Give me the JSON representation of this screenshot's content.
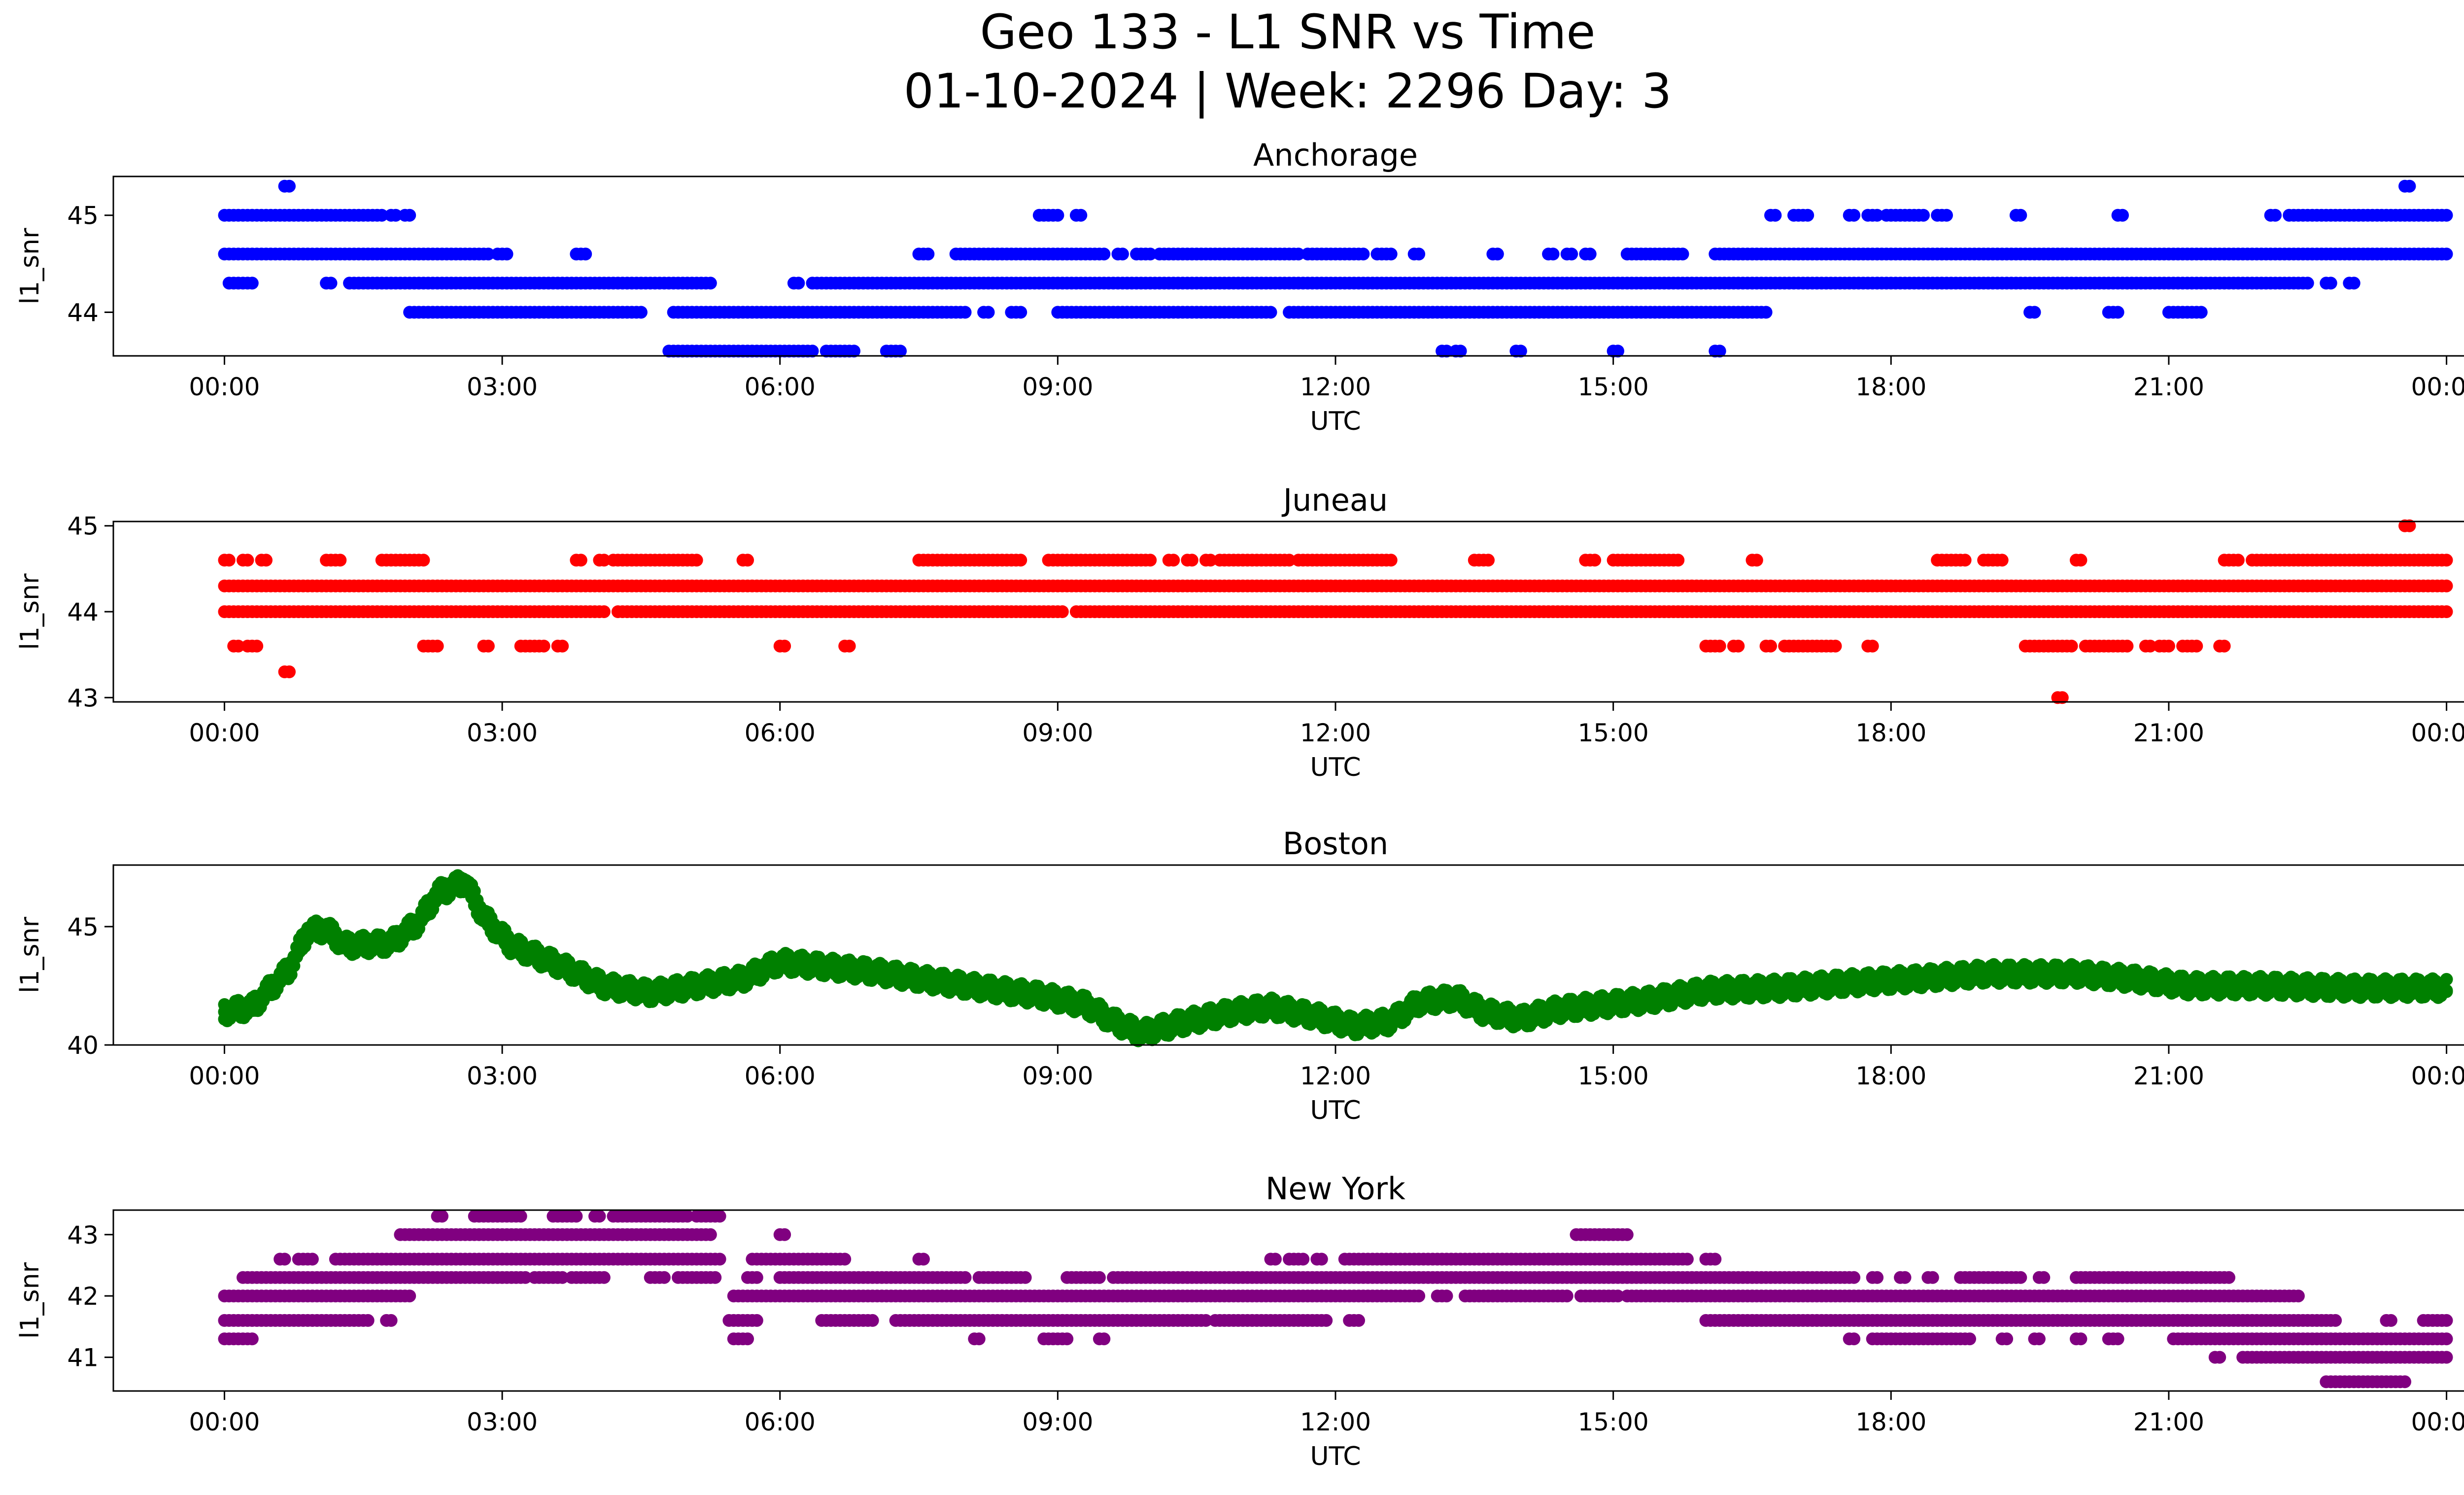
{
  "figure": {
    "title_line1": "Geo 133 - L1 SNR vs Time",
    "title_line2": "01-10-2024 | Week: 2296 Day: 3"
  },
  "chart_data": [
    {
      "type": "scatter",
      "title": "Anchorage",
      "xlabel": "UTC",
      "ylabel": "l1_snr",
      "color": "#0000ff",
      "xticks": [
        "00:00",
        "03:00",
        "06:00",
        "09:00",
        "12:00",
        "15:00",
        "18:00",
        "21:00",
        "00:00"
      ],
      "xlim": [
        -1.2,
        25.2
      ],
      "yticks": [
        44,
        45
      ],
      "ylim": [
        43.55,
        45.4
      ],
      "segments": [
        {
          "y": 45.0,
          "ranges": [
            [
              0,
              1.7
            ],
            [
              1.8,
              1.85
            ],
            [
              1.95,
              2.0
            ],
            [
              8.8,
              9.0
            ],
            [
              9.2,
              9.25
            ],
            [
              16.7,
              16.75
            ],
            [
              16.95,
              17.0
            ],
            [
              17.05,
              17.1
            ],
            [
              17.55,
              17.6
            ],
            [
              17.75,
              17.85
            ],
            [
              17.95,
              18.35
            ],
            [
              18.5,
              18.6
            ],
            [
              19.35,
              19.4
            ],
            [
              20.45,
              20.5
            ],
            [
              22.1,
              22.15
            ],
            [
              22.3,
              24.0
            ]
          ]
        },
        {
          "y": 44.6,
          "ranges": [
            [
              0,
              2.85
            ],
            [
              2.95,
              3.05
            ],
            [
              3.8,
              3.9
            ],
            [
              7.5,
              7.6
            ],
            [
              7.9,
              9.5
            ],
            [
              9.65,
              9.7
            ],
            [
              9.85,
              10.0
            ],
            [
              10.1,
              11.6
            ],
            [
              11.7,
              12.3
            ],
            [
              12.45,
              12.6
            ],
            [
              12.85,
              12.9
            ],
            [
              13.7,
              13.75
            ],
            [
              14.3,
              14.35
            ],
            [
              14.5,
              14.55
            ],
            [
              14.7,
              14.75
            ],
            [
              15.15,
              15.75
            ],
            [
              16.1,
              24.0
            ]
          ]
        },
        {
          "y": 44.3,
          "ranges": [
            [
              0.05,
              0.3
            ],
            [
              1.1,
              1.15
            ],
            [
              1.35,
              5.25
            ],
            [
              6.15,
              6.2
            ],
            [
              6.35,
              22.5
            ],
            [
              22.7,
              22.75
            ],
            [
              22.95,
              23.0
            ]
          ]
        },
        {
          "y": 44.0,
          "ranges": [
            [
              2.0,
              4.5
            ],
            [
              4.85,
              8.0
            ],
            [
              8.2,
              8.25
            ],
            [
              8.5,
              8.6
            ],
            [
              9.0,
              11.3
            ],
            [
              11.5,
              16.65
            ],
            [
              19.5,
              19.55
            ],
            [
              20.35,
              20.45
            ],
            [
              21.0,
              21.35
            ]
          ]
        },
        {
          "y": 43.6,
          "ranges": [
            [
              4.8,
              6.35
            ],
            [
              6.5,
              6.8
            ],
            [
              7.15,
              7.3
            ],
            [
              13.15,
              13.2
            ],
            [
              13.3,
              13.35
            ],
            [
              13.95,
              14.0
            ],
            [
              15.0,
              15.05
            ],
            [
              16.1,
              16.15
            ]
          ]
        },
        {
          "y": 45.3,
          "ranges": [
            [
              0.65,
              0.7
            ],
            [
              23.55,
              23.6
            ]
          ]
        }
      ]
    },
    {
      "type": "scatter",
      "title": "Juneau",
      "xlabel": "UTC",
      "ylabel": "l1_snr",
      "color": "#ff0000",
      "xticks": [
        "00:00",
        "03:00",
        "06:00",
        "09:00",
        "12:00",
        "15:00",
        "18:00",
        "21:00",
        "00:00"
      ],
      "xlim": [
        -1.2,
        25.2
      ],
      "yticks": [
        43,
        44,
        45
      ],
      "ylim": [
        42.95,
        45.05
      ],
      "segments": [
        {
          "y": 45.0,
          "ranges": [
            [
              23.55,
              23.6
            ]
          ]
        },
        {
          "y": 44.6,
          "ranges": [
            [
              0,
              0.05
            ],
            [
              0.2,
              0.25
            ],
            [
              0.4,
              0.45
            ],
            [
              1.1,
              1.25
            ],
            [
              1.7,
              2.15
            ],
            [
              3.8,
              3.85
            ],
            [
              4.05,
              4.1
            ],
            [
              4.2,
              5.1
            ],
            [
              5.6,
              5.65
            ],
            [
              7.5,
              8.6
            ],
            [
              8.9,
              10.0
            ],
            [
              10.2,
              10.25
            ],
            [
              10.4,
              10.45
            ],
            [
              10.6,
              10.65
            ],
            [
              10.75,
              11.5
            ],
            [
              11.6,
              12.6
            ],
            [
              13.5,
              13.65
            ],
            [
              14.7,
              14.8
            ],
            [
              15.0,
              15.7
            ],
            [
              16.5,
              16.55
            ],
            [
              18.5,
              18.8
            ],
            [
              19.0,
              19.2
            ],
            [
              20.0,
              20.05
            ],
            [
              21.6,
              21.75
            ],
            [
              21.9,
              24.0
            ]
          ]
        },
        {
          "y": 44.3,
          "ranges": [
            [
              0,
              24.0
            ]
          ]
        },
        {
          "y": 44.0,
          "ranges": [
            [
              0,
              4.1
            ],
            [
              4.25,
              9.05
            ],
            [
              9.2,
              24.0
            ]
          ]
        },
        {
          "y": 43.6,
          "ranges": [
            [
              0.1,
              0.15
            ],
            [
              0.25,
              0.35
            ],
            [
              2.15,
              2.3
            ],
            [
              2.8,
              2.85
            ],
            [
              3.2,
              3.45
            ],
            [
              3.6,
              3.65
            ],
            [
              6.0,
              6.05
            ],
            [
              6.7,
              6.75
            ],
            [
              16.0,
              16.15
            ],
            [
              16.3,
              16.35
            ],
            [
              16.65,
              16.7
            ],
            [
              16.85,
              17.4
            ],
            [
              17.75,
              17.8
            ],
            [
              20.9,
              21.0
            ],
            [
              19.45,
              19.95
            ],
            [
              20.1,
              20.55
            ],
            [
              20.75,
              20.8
            ],
            [
              21.15,
              21.3
            ],
            [
              21.55,
              21.6
            ]
          ]
        },
        {
          "y": 43.3,
          "ranges": [
            [
              0.65,
              0.7
            ]
          ]
        },
        {
          "y": 43.0,
          "ranges": [
            [
              19.8,
              19.85
            ]
          ]
        }
      ]
    },
    {
      "type": "scatter",
      "title": "Boston",
      "xlabel": "UTC",
      "ylabel": "l1_snr",
      "color": "#008000",
      "xticks": [
        "00:00",
        "03:00",
        "06:00",
        "09:00",
        "12:00",
        "15:00",
        "18:00",
        "21:00",
        "00:00"
      ],
      "xlim": [
        -1.2,
        25.2
      ],
      "yticks": [
        40,
        45
      ],
      "ylim": [
        40.0,
        47.6
      ],
      "curve": [
        [
          0,
          41.4
        ],
        [
          0.3,
          41.6
        ],
        [
          0.7,
          43.2
        ],
        [
          0.9,
          44.8
        ],
        [
          1.1,
          44.9
        ],
        [
          1.3,
          44.2
        ],
        [
          1.8,
          44.3
        ],
        [
          2.1,
          45.2
        ],
        [
          2.3,
          46.4
        ],
        [
          2.6,
          46.9
        ],
        [
          2.8,
          45.4
        ],
        [
          3.1,
          44.2
        ],
        [
          3.6,
          43.4
        ],
        [
          4.1,
          42.5
        ],
        [
          4.6,
          42.2
        ],
        [
          5.1,
          42.5
        ],
        [
          5.6,
          42.8
        ],
        [
          6.0,
          43.5
        ],
        [
          6.5,
          43.3
        ],
        [
          7.0,
          43.1
        ],
        [
          7.5,
          42.8
        ],
        [
          8.2,
          42.4
        ],
        [
          8.8,
          42.1
        ],
        [
          9.3,
          41.7
        ],
        [
          9.6,
          41.0
        ],
        [
          9.9,
          40.5
        ],
        [
          10.3,
          40.9
        ],
        [
          10.9,
          41.4
        ],
        [
          11.3,
          41.6
        ],
        [
          11.8,
          41.2
        ],
        [
          12.2,
          40.8
        ],
        [
          12.6,
          41.0
        ],
        [
          12.9,
          41.8
        ],
        [
          13.3,
          42.0
        ],
        [
          13.6,
          41.4
        ],
        [
          14.0,
          41.1
        ],
        [
          14.4,
          41.5
        ],
        [
          14.9,
          41.7
        ],
        [
          15.4,
          41.9
        ],
        [
          16.0,
          42.3
        ],
        [
          16.8,
          42.4
        ],
        [
          17.5,
          42.6
        ],
        [
          18.3,
          42.8
        ],
        [
          19.0,
          43.0
        ],
        [
          20.0,
          43.0
        ],
        [
          20.6,
          42.8
        ],
        [
          21.2,
          42.5
        ],
        [
          22.0,
          42.5
        ],
        [
          23.0,
          42.4
        ],
        [
          24.0,
          42.4
        ]
      ]
    },
    {
      "type": "scatter",
      "title": "New York",
      "xlabel": "UTC",
      "ylabel": "l1_snr",
      "color": "#800080",
      "xticks": [
        "00:00",
        "03:00",
        "06:00",
        "09:00",
        "12:00",
        "15:00",
        "18:00",
        "21:00",
        "00:00"
      ],
      "xlim": [
        -1.2,
        25.2
      ],
      "yticks": [
        41,
        42,
        43
      ],
      "ylim": [
        40.45,
        43.4
      ],
      "segments": [
        {
          "y": 43.3,
          "ranges": [
            [
              2.3,
              2.35
            ],
            [
              2.7,
              3.2
            ],
            [
              3.55,
              3.8
            ],
            [
              4.0,
              4.05
            ],
            [
              4.2,
              5.0
            ],
            [
              5.1,
              5.35
            ]
          ]
        },
        {
          "y": 43.0,
          "ranges": [
            [
              1.9,
              5.25
            ],
            [
              6.0,
              6.05
            ],
            [
              14.6,
              15.15
            ]
          ]
        },
        {
          "y": 42.6,
          "ranges": [
            [
              0.6,
              0.65
            ],
            [
              0.8,
              0.95
            ],
            [
              1.2,
              5.35
            ],
            [
              5.7,
              6.6
            ],
            [
              6.65,
              6.7
            ],
            [
              7.5,
              7.55
            ],
            [
              11.3,
              11.35
            ],
            [
              11.5,
              11.65
            ],
            [
              11.8,
              11.85
            ],
            [
              12.1,
              15.8
            ],
            [
              16.0,
              16.1
            ]
          ]
        },
        {
          "y": 42.3,
          "ranges": [
            [
              0.2,
              3.25
            ],
            [
              3.35,
              3.65
            ],
            [
              3.75,
              4.1
            ],
            [
              4.6,
              4.75
            ],
            [
              4.9,
              5.3
            ],
            [
              5.65,
              5.75
            ],
            [
              6.0,
              8.0
            ],
            [
              8.15,
              8.65
            ],
            [
              9.1,
              9.45
            ],
            [
              9.6,
              17.6
            ],
            [
              17.8,
              17.85
            ],
            [
              18.1,
              18.15
            ],
            [
              18.4,
              18.45
            ],
            [
              18.75,
              19.4
            ],
            [
              19.6,
              19.65
            ],
            [
              20.0,
              21.65
            ]
          ]
        },
        {
          "y": 42.0,
          "ranges": [
            [
              0,
              2.0
            ],
            [
              5.5,
              12.9
            ],
            [
              13.1,
              13.2
            ],
            [
              13.4,
              14.5
            ],
            [
              14.65,
              15.05
            ],
            [
              15.15,
              22.4
            ]
          ]
        },
        {
          "y": 41.6,
          "ranges": [
            [
              0,
              1.55
            ],
            [
              1.75,
              1.8
            ],
            [
              5.45,
              5.75
            ],
            [
              6.45,
              7.0
            ],
            [
              7.25,
              10.6
            ],
            [
              10.7,
              11.9
            ],
            [
              12.15,
              12.25
            ],
            [
              16.0,
              22.8
            ]
          ]
        },
        {
          "y": 41.3,
          "ranges": [
            [
              0,
              0.3
            ],
            [
              5.5,
              5.65
            ],
            [
              8.1,
              8.15
            ],
            [
              8.85,
              9.1
            ],
            [
              9.45,
              9.5
            ],
            [
              17.55,
              17.6
            ],
            [
              17.8,
              18.85
            ],
            [
              19.2,
              19.25
            ],
            [
              19.55,
              19.6
            ],
            [
              20.0,
              20.05
            ],
            [
              20.35,
              20.45
            ],
            [
              21.05,
              24.0
            ]
          ]
        },
        {
          "y": 41.0,
          "ranges": [
            [
              21.5,
              21.55
            ],
            [
              21.8,
              24.0
            ]
          ]
        },
        {
          "y": 40.6,
          "ranges": [
            [
              22.7,
              23.55
            ]
          ]
        },
        {
          "y": 41.6,
          "ranges": [
            [
              23.35,
              23.4
            ],
            [
              23.75,
              24.0
            ]
          ]
        }
      ]
    }
  ]
}
